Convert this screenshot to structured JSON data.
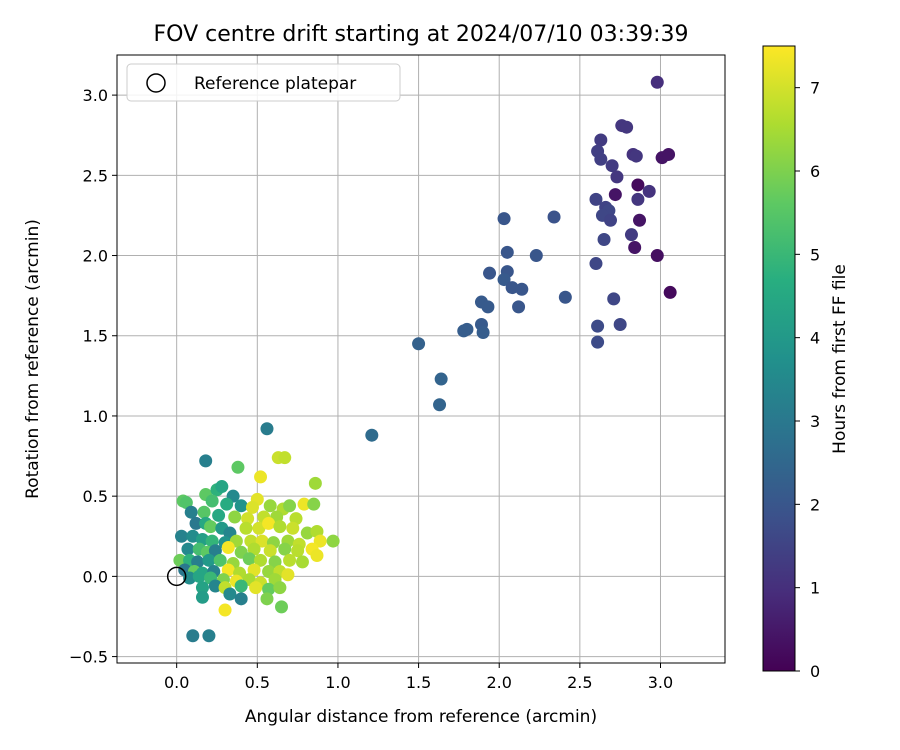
{
  "chart_data": {
    "type": "scatter",
    "title": "FOV centre drift starting at 2024/07/10 03:39:39",
    "xlabel": "Angular distance from reference (arcmin)",
    "ylabel": "Rotation from reference (arcmin)",
    "xlim": [
      -0.37,
      3.4
    ],
    "ylim": [
      -0.54,
      3.25
    ],
    "xticks": [
      "0.0",
      "0.5",
      "1.0",
      "1.5",
      "2.0",
      "2.5",
      "3.0"
    ],
    "yticks": [
      "−0.5",
      "0.0",
      "0.5",
      "1.0",
      "1.5",
      "2.0",
      "2.5",
      "3.0"
    ],
    "grid": true,
    "legend": {
      "position": "top-left",
      "label": "Reference platepar",
      "marker": "open-circle"
    },
    "reference_point": {
      "x": 0.0,
      "y": 0.0
    },
    "colorbar": {
      "label": "Hours from first FF file",
      "min": 0,
      "max": 7.5,
      "ticks": [
        "0",
        "1",
        "2",
        "3",
        "4",
        "5",
        "6",
        "7"
      ],
      "colormap": "viridis"
    },
    "points": [
      {
        "x": 2.98,
        "y": 3.08,
        "c": 1.0
      },
      {
        "x": 2.76,
        "y": 2.81,
        "c": 1.2
      },
      {
        "x": 2.79,
        "y": 2.8,
        "c": 1.2
      },
      {
        "x": 2.63,
        "y": 2.72,
        "c": 1.3
      },
      {
        "x": 2.61,
        "y": 2.65,
        "c": 1.4
      },
      {
        "x": 2.83,
        "y": 2.63,
        "c": 1.1
      },
      {
        "x": 2.85,
        "y": 2.62,
        "c": 1.2
      },
      {
        "x": 3.01,
        "y": 2.61,
        "c": 0.4
      },
      {
        "x": 3.05,
        "y": 2.63,
        "c": 0.4
      },
      {
        "x": 2.63,
        "y": 2.6,
        "c": 1.4
      },
      {
        "x": 2.7,
        "y": 2.56,
        "c": 1.3
      },
      {
        "x": 2.73,
        "y": 2.49,
        "c": 1.2
      },
      {
        "x": 2.86,
        "y": 2.44,
        "c": 0.2
      },
      {
        "x": 2.93,
        "y": 2.4,
        "c": 1.1
      },
      {
        "x": 2.72,
        "y": 2.38,
        "c": 0.4
      },
      {
        "x": 2.86,
        "y": 2.35,
        "c": 1.2
      },
      {
        "x": 2.6,
        "y": 2.35,
        "c": 1.5
      },
      {
        "x": 2.66,
        "y": 2.3,
        "c": 1.5
      },
      {
        "x": 2.68,
        "y": 2.28,
        "c": 1.6
      },
      {
        "x": 2.64,
        "y": 2.25,
        "c": 1.6
      },
      {
        "x": 2.69,
        "y": 2.22,
        "c": 1.5
      },
      {
        "x": 2.87,
        "y": 2.22,
        "c": 0.4
      },
      {
        "x": 2.03,
        "y": 2.23,
        "c": 2.0
      },
      {
        "x": 2.34,
        "y": 2.24,
        "c": 1.9
      },
      {
        "x": 2.82,
        "y": 2.13,
        "c": 1.3
      },
      {
        "x": 2.65,
        "y": 2.1,
        "c": 1.6
      },
      {
        "x": 2.84,
        "y": 2.05,
        "c": 0.4
      },
      {
        "x": 2.98,
        "y": 2.0,
        "c": 0.3
      },
      {
        "x": 2.05,
        "y": 2.02,
        "c": 2.0
      },
      {
        "x": 2.23,
        "y": 2.0,
        "c": 2.0
      },
      {
        "x": 2.6,
        "y": 1.95,
        "c": 1.6
      },
      {
        "x": 1.94,
        "y": 1.89,
        "c": 2.0
      },
      {
        "x": 2.05,
        "y": 1.9,
        "c": 2.0
      },
      {
        "x": 2.03,
        "y": 1.85,
        "c": 2.1
      },
      {
        "x": 2.08,
        "y": 1.8,
        "c": 2.0
      },
      {
        "x": 2.14,
        "y": 1.79,
        "c": 2.0
      },
      {
        "x": 3.06,
        "y": 1.77,
        "c": 0.2
      },
      {
        "x": 2.41,
        "y": 1.74,
        "c": 2.0
      },
      {
        "x": 2.71,
        "y": 1.73,
        "c": 1.6
      },
      {
        "x": 1.89,
        "y": 1.71,
        "c": 2.1
      },
      {
        "x": 1.93,
        "y": 1.68,
        "c": 2.1
      },
      {
        "x": 2.12,
        "y": 1.68,
        "c": 2.0
      },
      {
        "x": 2.61,
        "y": 1.56,
        "c": 1.7
      },
      {
        "x": 2.75,
        "y": 1.57,
        "c": 1.6
      },
      {
        "x": 1.89,
        "y": 1.57,
        "c": 2.1
      },
      {
        "x": 1.8,
        "y": 1.54,
        "c": 2.2
      },
      {
        "x": 1.78,
        "y": 1.53,
        "c": 2.2
      },
      {
        "x": 1.9,
        "y": 1.52,
        "c": 2.2
      },
      {
        "x": 2.61,
        "y": 1.46,
        "c": 1.7
      },
      {
        "x": 1.5,
        "y": 1.45,
        "c": 2.3
      },
      {
        "x": 1.64,
        "y": 1.23,
        "c": 2.4
      },
      {
        "x": 1.63,
        "y": 1.07,
        "c": 2.4
      },
      {
        "x": 1.21,
        "y": 0.88,
        "c": 2.6
      },
      {
        "x": 0.56,
        "y": 0.92,
        "c": 3.1
      },
      {
        "x": 0.18,
        "y": 0.72,
        "c": 3.2
      },
      {
        "x": 0.38,
        "y": 0.68,
        "c": 5.6
      },
      {
        "x": 0.63,
        "y": 0.74,
        "c": 6.9
      },
      {
        "x": 0.67,
        "y": 0.74,
        "c": 6.8
      },
      {
        "x": 0.52,
        "y": 0.62,
        "c": 7.3
      },
      {
        "x": 0.86,
        "y": 0.58,
        "c": 6.4
      },
      {
        "x": 0.18,
        "y": 0.51,
        "c": 5.6
      },
      {
        "x": 0.25,
        "y": 0.54,
        "c": 4.8
      },
      {
        "x": 0.28,
        "y": 0.56,
        "c": 4.4
      },
      {
        "x": 0.35,
        "y": 0.5,
        "c": 3.5
      },
      {
        "x": 0.5,
        "y": 0.48,
        "c": 7.2
      },
      {
        "x": 0.04,
        "y": 0.47,
        "c": 5.6
      },
      {
        "x": 0.06,
        "y": 0.46,
        "c": 5.4
      },
      {
        "x": 0.22,
        "y": 0.47,
        "c": 5.2
      },
      {
        "x": 0.31,
        "y": 0.45,
        "c": 4.6
      },
      {
        "x": 0.4,
        "y": 0.44,
        "c": 3.8
      },
      {
        "x": 0.47,
        "y": 0.43,
        "c": 7.1
      },
      {
        "x": 0.58,
        "y": 0.44,
        "c": 6.3
      },
      {
        "x": 0.66,
        "y": 0.42,
        "c": 6.6
      },
      {
        "x": 0.7,
        "y": 0.44,
        "c": 6.1
      },
      {
        "x": 0.79,
        "y": 0.45,
        "c": 7.3
      },
      {
        "x": 0.85,
        "y": 0.45,
        "c": 6.1
      },
      {
        "x": 0.09,
        "y": 0.4,
        "c": 3.2
      },
      {
        "x": 0.17,
        "y": 0.4,
        "c": 5.5
      },
      {
        "x": 0.26,
        "y": 0.38,
        "c": 4.5
      },
      {
        "x": 0.36,
        "y": 0.37,
        "c": 6.2
      },
      {
        "x": 0.44,
        "y": 0.36,
        "c": 7.0
      },
      {
        "x": 0.54,
        "y": 0.37,
        "c": 6.8
      },
      {
        "x": 0.62,
        "y": 0.37,
        "c": 6.4
      },
      {
        "x": 0.74,
        "y": 0.36,
        "c": 6.7
      },
      {
        "x": 0.12,
        "y": 0.33,
        "c": 3.0
      },
      {
        "x": 0.18,
        "y": 0.33,
        "c": 4.5
      },
      {
        "x": 0.21,
        "y": 0.31,
        "c": 5.7
      },
      {
        "x": 0.28,
        "y": 0.3,
        "c": 4.0
      },
      {
        "x": 0.33,
        "y": 0.27,
        "c": 3.4
      },
      {
        "x": 0.43,
        "y": 0.3,
        "c": 6.7
      },
      {
        "x": 0.51,
        "y": 0.3,
        "c": 7.0
      },
      {
        "x": 0.57,
        "y": 0.33,
        "c": 7.4
      },
      {
        "x": 0.64,
        "y": 0.31,
        "c": 6.6
      },
      {
        "x": 0.72,
        "y": 0.3,
        "c": 6.9
      },
      {
        "x": 0.81,
        "y": 0.27,
        "c": 6.3
      },
      {
        "x": 0.87,
        "y": 0.28,
        "c": 6.6
      },
      {
        "x": 0.03,
        "y": 0.25,
        "c": 3.3
      },
      {
        "x": 0.1,
        "y": 0.25,
        "c": 3.6
      },
      {
        "x": 0.16,
        "y": 0.23,
        "c": 4.2
      },
      {
        "x": 0.22,
        "y": 0.22,
        "c": 4.9
      },
      {
        "x": 0.3,
        "y": 0.21,
        "c": 3.8
      },
      {
        "x": 0.37,
        "y": 0.22,
        "c": 6.4
      },
      {
        "x": 0.46,
        "y": 0.22,
        "c": 6.8
      },
      {
        "x": 0.53,
        "y": 0.22,
        "c": 7.1
      },
      {
        "x": 0.6,
        "y": 0.21,
        "c": 6.2
      },
      {
        "x": 0.69,
        "y": 0.22,
        "c": 6.4
      },
      {
        "x": 0.76,
        "y": 0.2,
        "c": 6.8
      },
      {
        "x": 0.89,
        "y": 0.22,
        "c": 7.3
      },
      {
        "x": 0.97,
        "y": 0.22,
        "c": 6.2
      },
      {
        "x": 0.07,
        "y": 0.17,
        "c": 3.5
      },
      {
        "x": 0.14,
        "y": 0.17,
        "c": 5.2
      },
      {
        "x": 0.19,
        "y": 0.15,
        "c": 5.6
      },
      {
        "x": 0.24,
        "y": 0.16,
        "c": 3.2
      },
      {
        "x": 0.32,
        "y": 0.18,
        "c": 7.4
      },
      {
        "x": 0.4,
        "y": 0.15,
        "c": 6.0
      },
      {
        "x": 0.48,
        "y": 0.17,
        "c": 6.6
      },
      {
        "x": 0.58,
        "y": 0.16,
        "c": 6.9
      },
      {
        "x": 0.67,
        "y": 0.17,
        "c": 6.1
      },
      {
        "x": 0.75,
        "y": 0.16,
        "c": 6.7
      },
      {
        "x": 0.84,
        "y": 0.17,
        "c": 7.4
      },
      {
        "x": 0.87,
        "y": 0.13,
        "c": 7.3
      },
      {
        "x": 0.02,
        "y": 0.1,
        "c": 5.8
      },
      {
        "x": 0.08,
        "y": 0.1,
        "c": 4.8
      },
      {
        "x": 0.13,
        "y": 0.09,
        "c": 3.2
      },
      {
        "x": 0.2,
        "y": 0.1,
        "c": 4.0
      },
      {
        "x": 0.27,
        "y": 0.1,
        "c": 5.4
      },
      {
        "x": 0.35,
        "y": 0.08,
        "c": 6.3
      },
      {
        "x": 0.45,
        "y": 0.11,
        "c": 5.8
      },
      {
        "x": 0.52,
        "y": 0.1,
        "c": 6.6
      },
      {
        "x": 0.61,
        "y": 0.09,
        "c": 6.1
      },
      {
        "x": 0.7,
        "y": 0.1,
        "c": 6.7
      },
      {
        "x": 0.78,
        "y": 0.09,
        "c": 6.5
      },
      {
        "x": 0.05,
        "y": 0.04,
        "c": 3.0
      },
      {
        "x": 0.11,
        "y": 0.03,
        "c": 5.7
      },
      {
        "x": 0.16,
        "y": 0.02,
        "c": 4.4
      },
      {
        "x": 0.23,
        "y": 0.03,
        "c": 3.3
      },
      {
        "x": 0.32,
        "y": 0.04,
        "c": 7.4
      },
      {
        "x": 0.39,
        "y": 0.02,
        "c": 6.6
      },
      {
        "x": 0.48,
        "y": 0.04,
        "c": 7.2
      },
      {
        "x": 0.57,
        "y": 0.03,
        "c": 6.3
      },
      {
        "x": 0.64,
        "y": 0.03,
        "c": 6.8
      },
      {
        "x": 0.69,
        "y": 0.01,
        "c": 7.2
      },
      {
        "x": 0.08,
        "y": -0.01,
        "c": 3.6
      },
      {
        "x": 0.14,
        "y": 0.0,
        "c": 4.4
      },
      {
        "x": 0.21,
        "y": -0.01,
        "c": 5.0
      },
      {
        "x": 0.29,
        "y": -0.02,
        "c": 6.0
      },
      {
        "x": 0.37,
        "y": -0.03,
        "c": 7.3
      },
      {
        "x": 0.45,
        "y": -0.02,
        "c": 6.5
      },
      {
        "x": 0.52,
        "y": -0.04,
        "c": 6.9
      },
      {
        "x": 0.61,
        "y": -0.02,
        "c": 6.4
      },
      {
        "x": 0.16,
        "y": -0.07,
        "c": 4.3
      },
      {
        "x": 0.24,
        "y": -0.06,
        "c": 3.4
      },
      {
        "x": 0.3,
        "y": -0.07,
        "c": 6.8
      },
      {
        "x": 0.4,
        "y": -0.06,
        "c": 5.0
      },
      {
        "x": 0.49,
        "y": -0.07,
        "c": 7.2
      },
      {
        "x": 0.57,
        "y": -0.08,
        "c": 5.7
      },
      {
        "x": 0.64,
        "y": -0.07,
        "c": 6.2
      },
      {
        "x": 0.33,
        "y": -0.11,
        "c": 3.5
      },
      {
        "x": 0.4,
        "y": -0.14,
        "c": 3.2
      },
      {
        "x": 0.56,
        "y": -0.14,
        "c": 6.0
      },
      {
        "x": 0.16,
        "y": -0.13,
        "c": 4.1
      },
      {
        "x": 0.65,
        "y": -0.19,
        "c": 5.8
      },
      {
        "x": 0.3,
        "y": -0.21,
        "c": 7.4
      },
      {
        "x": 0.1,
        "y": -0.37,
        "c": 3.1
      },
      {
        "x": 0.2,
        "y": -0.37,
        "c": 3.2
      }
    ]
  }
}
